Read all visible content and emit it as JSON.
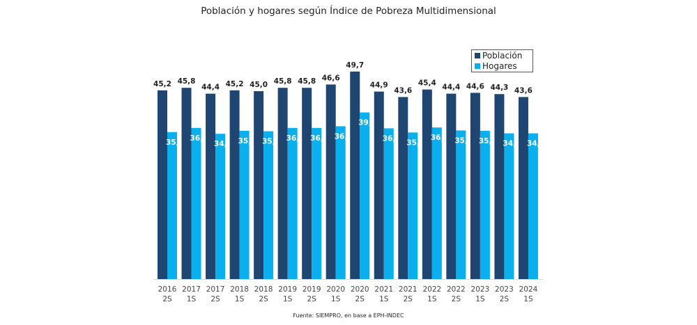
{
  "chart_data": {
    "type": "bar",
    "title": "Población y hogares según Índice de Pobreza Multidimensional",
    "xlabel": "",
    "ylabel": "",
    "ylim": [
      0,
      50
    ],
    "grid": false,
    "legend_position": "top-right",
    "categories": [
      [
        "2016",
        "2S"
      ],
      [
        "2017",
        "1S"
      ],
      [
        "2017",
        "2S"
      ],
      [
        "2018",
        "1S"
      ],
      [
        "2018",
        "2S"
      ],
      [
        "2019",
        "1S"
      ],
      [
        "2019",
        "2S"
      ],
      [
        "2020",
        "1S"
      ],
      [
        "2020",
        "2S"
      ],
      [
        "2021",
        "1S"
      ],
      [
        "2021",
        "2S"
      ],
      [
        "2022",
        "1S"
      ],
      [
        "2022",
        "2S"
      ],
      [
        "2023",
        "1S"
      ],
      [
        "2023",
        "2S"
      ],
      [
        "2024",
        "1S"
      ]
    ],
    "series": [
      {
        "name": "Población",
        "color": "#1f4571",
        "values": [
          45.2,
          45.8,
          44.4,
          45.2,
          45.0,
          45.8,
          45.8,
          46.6,
          49.7,
          44.9,
          43.6,
          45.4,
          44.4,
          44.6,
          44.3,
          43.6
        ],
        "labels": [
          "45,2",
          "45,8",
          "44,4",
          "45,2",
          "45,0",
          "45,8",
          "45,8",
          "46,6",
          "49,7",
          "44,9",
          "43,6",
          "45,4",
          "44,4",
          "44,6",
          "44,3",
          "43,6"
        ]
      },
      {
        "name": "Hogares",
        "color": "#0ab0ee",
        "values": [
          35.2,
          36.2,
          34.8,
          35.5,
          35.4,
          36.2,
          36.2,
          36.6,
          39.9,
          36.1,
          35.1,
          36.3,
          35.6,
          35.5,
          34.9,
          34.9
        ],
        "labels": [
          "35,2",
          "36,2",
          "34,8",
          "35,5",
          "35,4",
          "36,2",
          "36,2",
          "36,6",
          "39,9",
          "36,1",
          "35,1",
          "36,3",
          "35,6",
          "35,5",
          "34,9",
          "34,9"
        ]
      }
    ],
    "source": "Fuente: SIEMPRO, en base a EPH-INDEC"
  }
}
